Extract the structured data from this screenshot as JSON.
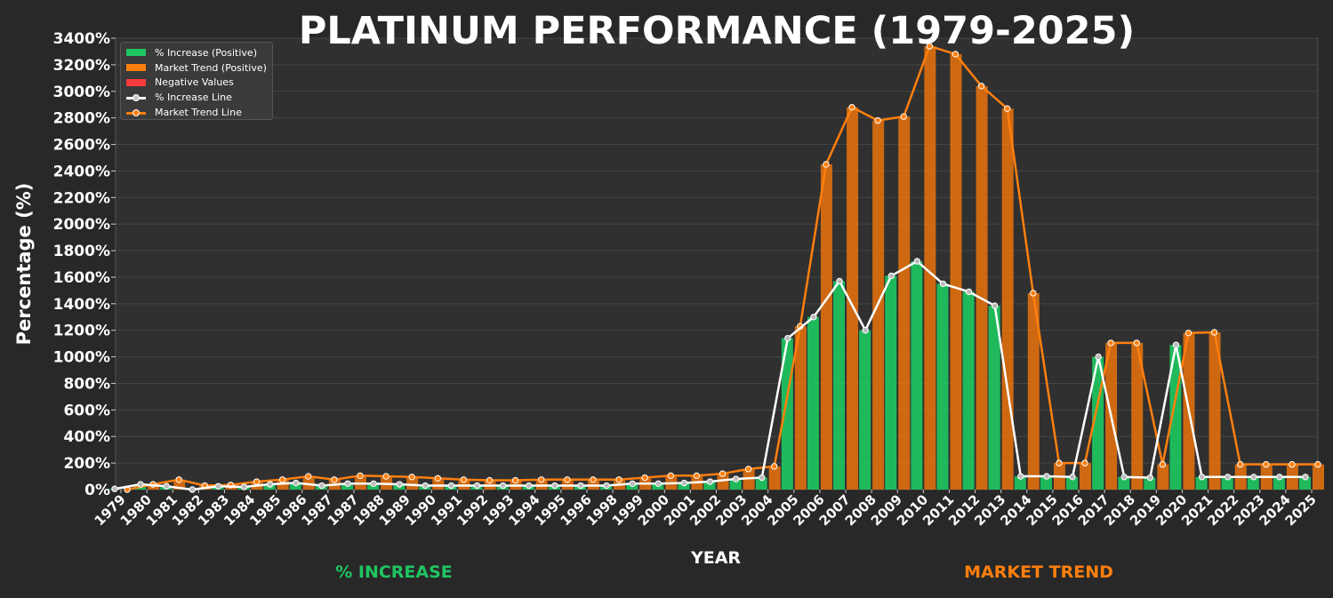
{
  "colors": {
    "background": "#282828",
    "plot_background": "#303030",
    "grid": "#454545",
    "green": "#1ec561",
    "orange": "#e0700e",
    "orange_line": "#ff7f0e",
    "red": "#ff4040",
    "white": "#ffffff"
  },
  "labels": {
    "title": "PLATINUM PERFORMANCE (1979-2025)",
    "ylabel": "Percentage (%)",
    "xlabel": "YEAR",
    "left_footer": "% INCREASE",
    "right_footer": "MARKET TREND"
  },
  "legend": {
    "items": [
      {
        "label": "% Increase (Positive)",
        "kind": "bar",
        "color": "#1ec561"
      },
      {
        "label": "Market Trend (Positive)",
        "kind": "bar",
        "color": "#ff7f0e"
      },
      {
        "label": "Negative Values",
        "kind": "bar",
        "color": "#ff3b3b"
      },
      {
        "label": "% Increase Line",
        "kind": "line",
        "color": "#ffffff"
      },
      {
        "label": "Market Trend Line",
        "kind": "line",
        "color": "#ff7f0e"
      }
    ]
  },
  "chart_data": {
    "type": "bar",
    "title": "PLATINUM PERFORMANCE (1979-2025)",
    "xlabel": "YEAR",
    "ylabel": "Percentage (%)",
    "ylim": [
      0,
      3400
    ],
    "y_ticks": [
      "0%",
      "200%",
      "400%",
      "600%",
      "800%",
      "1000%",
      "1200%",
      "1400%",
      "1600%",
      "1800%",
      "2000%",
      "2200%",
      "2400%",
      "2600%",
      "2800%",
      "3000%",
      "3200%",
      "3400%"
    ],
    "y_tick_values": [
      0,
      200,
      400,
      600,
      800,
      1000,
      1200,
      1400,
      1600,
      1800,
      2000,
      2200,
      2400,
      2600,
      2800,
      3000,
      3200,
      3400
    ],
    "grid": true,
    "legend_position": "top-left",
    "categories": [
      "1979",
      "1980",
      "1981",
      "1982",
      "1983",
      "1984",
      "1985",
      "1986",
      "1987",
      "1987",
      "1988",
      "1989",
      "1990",
      "1991",
      "1992",
      "1993",
      "1994",
      "1995",
      "1996",
      "1998",
      "1999",
      "2000",
      "2001",
      "2002",
      "2003",
      "2004",
      "2005",
      "2006",
      "2007",
      "2008",
      "2009",
      "2010",
      "2011",
      "2012",
      "2013",
      "2014",
      "2015",
      "2016",
      "2017",
      "2018",
      "2019",
      "2020",
      "2021",
      "2022",
      "2023",
      "2024",
      "2025"
    ],
    "series": [
      {
        "name": "% Increase (Positive)",
        "values": [
          5,
          40,
          25,
          0,
          25,
          20,
          40,
          50,
          30,
          45,
          45,
          40,
          30,
          30,
          30,
          30,
          30,
          30,
          30,
          30,
          45,
          45,
          50,
          60,
          80,
          90,
          1140,
          1300,
          1570,
          1200,
          1610,
          1720,
          1550,
          1490,
          1385,
          100,
          100,
          95,
          1000,
          95,
          90,
          1090,
          95,
          95,
          95,
          95,
          95
        ]
      },
      {
        "name": "Market Trend (Positive)",
        "values": [
          0,
          40,
          75,
          30,
          35,
          60,
          75,
          100,
          75,
          105,
          100,
          95,
          85,
          75,
          70,
          70,
          75,
          75,
          75,
          75,
          90,
          105,
          105,
          120,
          155,
          175,
          1230,
          2450,
          2880,
          2780,
          2810,
          3340,
          3280,
          3040,
          2870,
          1480,
          200,
          200,
          1105,
          1105,
          190,
          1180,
          1185,
          190,
          190,
          190,
          190
        ]
      }
    ]
  }
}
